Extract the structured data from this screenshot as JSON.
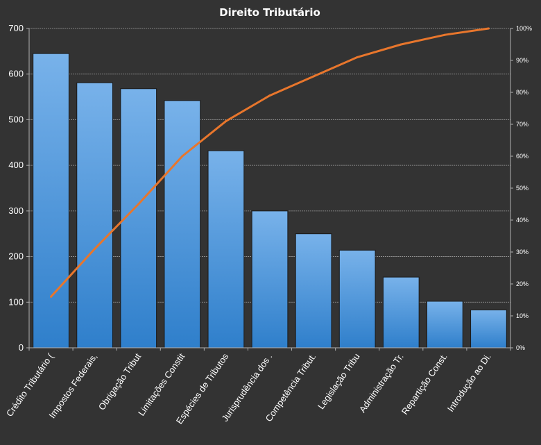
{
  "chart_data": {
    "type": "bar",
    "title": "Direito  Tributário",
    "categories": [
      "Crédito Tributário (",
      "Impostos Federais,",
      "Obrigação Tribut",
      "Limitações Constit",
      "Espécies de Tributos",
      "Jurisprudência dos .",
      "Competência Tribut.",
      "Legislação Tribu",
      "Administração Tr.",
      "Repartição Const.",
      "Introdução ao Di."
    ],
    "series": [
      {
        "type": "bar",
        "values": [
          645,
          581,
          568,
          542,
          432,
          300,
          250,
          214,
          155,
          102,
          83
        ]
      },
      {
        "type": "line",
        "axis": "secondary",
        "values": [
          0.16,
          0.31,
          0.45,
          0.6,
          0.71,
          0.79,
          0.85,
          0.91,
          0.95,
          0.98,
          1.0
        ]
      }
    ],
    "ylim": [
      0,
      700
    ],
    "yticks": [
      "0",
      "100",
      "200",
      "300",
      "400",
      "500",
      "600",
      "700"
    ],
    "y2lim": [
      0,
      1
    ],
    "y2ticks": [
      "0%",
      "10%",
      "20%",
      "30%",
      "40%",
      "50%",
      "60%",
      "70%",
      "80%",
      "90%",
      "100%"
    ],
    "grid": true,
    "legend": "none",
    "colors": {
      "background": "#333333",
      "bar_top": "#78B2EA",
      "bar_bottom": "#2F7FCB",
      "line": "#E8762C",
      "grid": "#9a9a9a",
      "text": "#ffffff"
    }
  }
}
